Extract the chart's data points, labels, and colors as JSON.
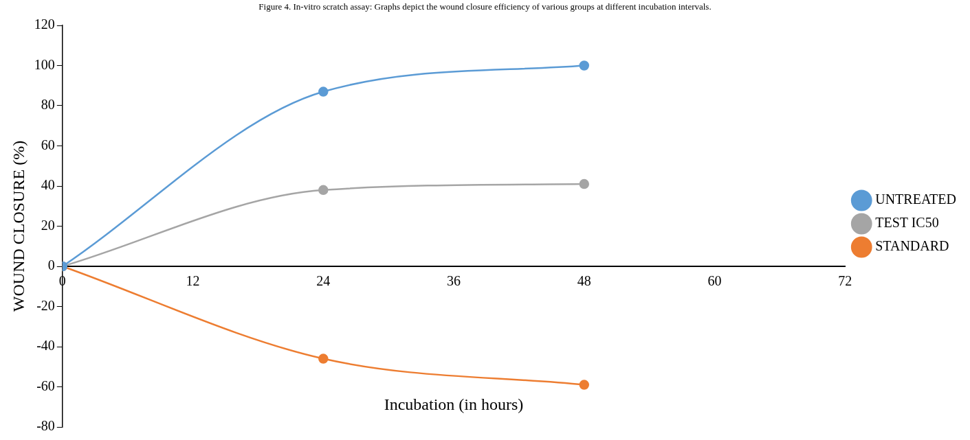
{
  "chart_data": {
    "type": "line",
    "title": "Figure 4. In-vitro scratch assay: Graphs depict the wound closure efficiency of various groups at different incubation intervals.",
    "xlabel": "Incubation (in hours)",
    "ylabel": "WOUND CLOSURE (%)",
    "x": [
      0,
      24,
      48
    ],
    "series": [
      {
        "name": "UNTREATED",
        "color": "#5b9bd5",
        "values": [
          0,
          87,
          100
        ]
      },
      {
        "name": "TEST IC50",
        "color": "#a5a5a5",
        "values": [
          0,
          38,
          41
        ]
      },
      {
        "name": "STANDARD",
        "color": "#ed7d31",
        "values": [
          0,
          -46,
          -59
        ]
      }
    ],
    "xlim": [
      0,
      72
    ],
    "xticks": [
      0,
      12,
      24,
      36,
      48,
      60,
      72
    ],
    "ylim": [
      -80,
      120
    ],
    "yticks": [
      -80,
      -60,
      -40,
      -20,
      0,
      20,
      40,
      60,
      80,
      100,
      120
    ],
    "grid": false,
    "legend": "right",
    "marker": "circle",
    "line_style": "solid"
  }
}
